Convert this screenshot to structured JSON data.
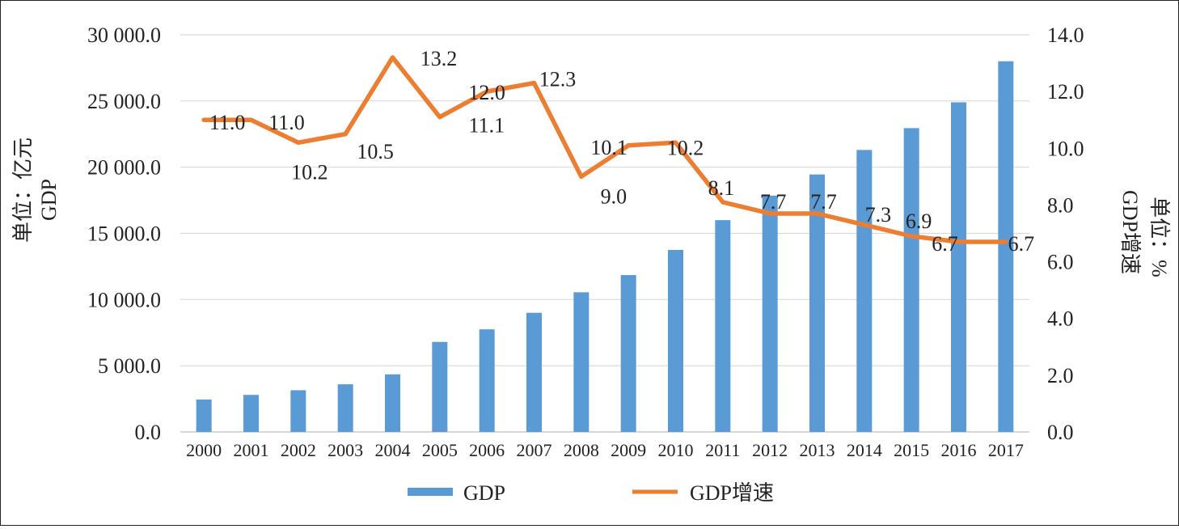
{
  "chart_data": {
    "type": "bar+line",
    "categories": [
      "2000",
      "2001",
      "2002",
      "2003",
      "2004",
      "2005",
      "2006",
      "2007",
      "2008",
      "2009",
      "2010",
      "2011",
      "2012",
      "2013",
      "2014",
      "2015",
      "2016",
      "2017"
    ],
    "series": [
      {
        "name": "GDP",
        "type": "bar",
        "axis": "left",
        "color": "#5B9BD5",
        "values": [
          2450,
          2800,
          3150,
          3600,
          4350,
          6800,
          7750,
          9000,
          10550,
          11850,
          13750,
          16000,
          17850,
          19450,
          21300,
          22950,
          24900,
          28000
        ]
      },
      {
        "name": "GDP增速",
        "type": "line",
        "axis": "right",
        "color": "#ED7D31",
        "values": [
          11.0,
          11.0,
          10.2,
          10.5,
          13.2,
          11.1,
          12.0,
          12.3,
          9.0,
          10.1,
          10.2,
          8.1,
          7.7,
          7.7,
          7.3,
          6.9,
          6.7,
          6.7
        ],
        "labels": [
          "11.0",
          "11.0",
          "10.2",
          "10.5",
          "13.2",
          "11.1",
          "12.0",
          "12.3",
          "9.0",
          "10.1",
          "10.2",
          "8.1",
          "7.7",
          "7.7",
          "7.3",
          "6.9",
          "6.7",
          "6.7"
        ]
      }
    ],
    "y_left": {
      "min": 0,
      "max": 30000,
      "step": 5000,
      "tick_labels": [
        "0.0",
        "5 000.0",
        "10 000.0",
        "15 000.0",
        "20 000.0",
        "25 000.0",
        "30 000.0"
      ],
      "label_line1": "GDP",
      "label_line2": "单位：亿元"
    },
    "y_right": {
      "min": 0,
      "max": 14,
      "step": 2,
      "tick_labels": [
        "0.0",
        "2.0",
        "4.0",
        "6.0",
        "8.0",
        "10.0",
        "12.0",
        "14.0"
      ],
      "label_line1": "GDP增速",
      "label_line2": "单位：%"
    },
    "grid": true,
    "legend_position": "bottom",
    "legend": [
      "GDP",
      "GDP增速"
    ]
  }
}
